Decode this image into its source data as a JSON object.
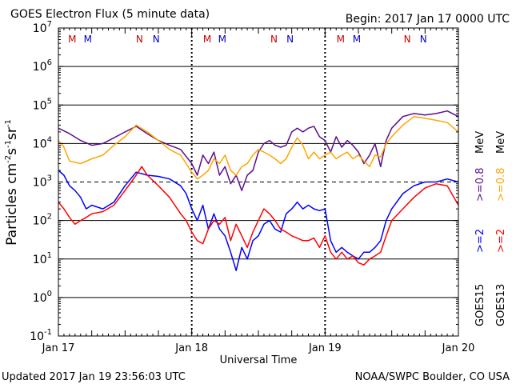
{
  "header": {
    "title": "GOES Electron Flux (5 minute data)",
    "begin": "Begin: 2017 Jan 17 0000 UTC"
  },
  "footer": {
    "updated": "Updated 2017 Jan 19 23:56:03 UTC",
    "credit": "NOAA/SWPC Boulder, CO USA"
  },
  "axes": {
    "xlabel": "Universal Time",
    "ylabel_main": "Particles cm",
    "ylabel_sup1": "-2",
    "ylabel_mid1": "s",
    "ylabel_sup2": "-1",
    "ylabel_mid2": "sr",
    "ylabel_sup3": "-1"
  },
  "legend": {
    "goes15": "GOES15",
    "goes13": "GOES13",
    "ge2": ">=2",
    "ge08": ">=0.8",
    "mev": "MeV",
    "colors": {
      "goes15_ge2": "#0000ff",
      "goes15_ge08": "#5c0f8b",
      "goes13_ge2": "#ff0000",
      "goes13_ge08": "#ffa500",
      "marker_m": "#cc0000",
      "marker_n": "#0000cc"
    }
  },
  "chart_data": {
    "type": "line",
    "title": "GOES Electron Flux (5 minute data)",
    "xlabel": "Universal Time",
    "ylabel": "Particles cm-2s-1sr-1",
    "x_ticks": [
      "Jan 17",
      "Jan 18",
      "Jan 19",
      "Jan 20"
    ],
    "x_unit": "hours since 2017 Jan 17 0000 UTC",
    "xlim": [
      0,
      72
    ],
    "y_scale": "log",
    "ylim": [
      0.1,
      10000000
    ],
    "y_ticks": [
      {
        "base": "10",
        "exp": "7"
      },
      {
        "base": "10",
        "exp": "6"
      },
      {
        "base": "10",
        "exp": "5"
      },
      {
        "base": "10",
        "exp": "4"
      },
      {
        "base": "10",
        "exp": "3"
      },
      {
        "base": "10",
        "exp": "2"
      },
      {
        "base": "10",
        "exp": "1"
      },
      {
        "base": "10",
        "exp": "0"
      },
      {
        "base": "10",
        "exp": "-1"
      }
    ],
    "alert_threshold": 1000,
    "magnetopause_markers": [
      {
        "label": "M",
        "x": 2.5,
        "color": "#cc0000"
      },
      {
        "label": "M",
        "x": 5.3,
        "color": "#0000cc"
      },
      {
        "label": "N",
        "x": 14.6,
        "color": "#cc0000"
      },
      {
        "label": "N",
        "x": 17.6,
        "color": "#0000cc"
      },
      {
        "label": "M",
        "x": 26.8,
        "color": "#cc0000"
      },
      {
        "label": "M",
        "x": 29.5,
        "color": "#0000cc"
      },
      {
        "label": "N",
        "x": 38.8,
        "color": "#cc0000"
      },
      {
        "label": "N",
        "x": 41.7,
        "color": "#0000cc"
      },
      {
        "label": "M",
        "x": 50.8,
        "color": "#cc0000"
      },
      {
        "label": "M",
        "x": 53.7,
        "color": "#0000cc"
      },
      {
        "label": "N",
        "x": 62.8,
        "color": "#cc0000"
      },
      {
        "label": "N",
        "x": 65.7,
        "color": "#0000cc"
      }
    ],
    "series": [
      {
        "name": "GOES15 >=0.8 MeV",
        "color": "#5c0f8b",
        "points": [
          [
            0,
            25000
          ],
          [
            2,
            18000
          ],
          [
            4,
            12000
          ],
          [
            6,
            9000
          ],
          [
            8,
            10000
          ],
          [
            10,
            14000
          ],
          [
            12,
            20000
          ],
          [
            14,
            28000
          ],
          [
            16,
            18000
          ],
          [
            18,
            12000
          ],
          [
            20,
            9000
          ],
          [
            22,
            7000
          ],
          [
            24,
            3000
          ],
          [
            25,
            1500
          ],
          [
            26,
            5000
          ],
          [
            27,
            3000
          ],
          [
            28,
            6000
          ],
          [
            29,
            1500
          ],
          [
            30,
            2500
          ],
          [
            31,
            900
          ],
          [
            32,
            1500
          ],
          [
            33,
            600
          ],
          [
            34,
            1500
          ],
          [
            35,
            2000
          ],
          [
            36,
            6000
          ],
          [
            37,
            10000
          ],
          [
            38,
            12000
          ],
          [
            39,
            9000
          ],
          [
            40,
            8000
          ],
          [
            41,
            9000
          ],
          [
            42,
            20000
          ],
          [
            43,
            25000
          ],
          [
            44,
            20000
          ],
          [
            45,
            25000
          ],
          [
            46,
            28000
          ],
          [
            47,
            15000
          ],
          [
            48,
            12000
          ],
          [
            49,
            6000
          ],
          [
            50,
            15000
          ],
          [
            51,
            8000
          ],
          [
            52,
            12000
          ],
          [
            53,
            9000
          ],
          [
            54,
            6000
          ],
          [
            55,
            3000
          ],
          [
            56,
            5000
          ],
          [
            57,
            10000
          ],
          [
            58,
            2500
          ],
          [
            59,
            12000
          ],
          [
            60,
            25000
          ],
          [
            62,
            50000
          ],
          [
            64,
            60000
          ],
          [
            66,
            55000
          ],
          [
            68,
            60000
          ],
          [
            70,
            70000
          ],
          [
            72,
            50000
          ]
        ]
      },
      {
        "name": "GOES13 >=0.8 MeV",
        "color": "#ffa500",
        "points": [
          [
            0,
            12000
          ],
          [
            1,
            8000
          ],
          [
            2,
            3500
          ],
          [
            4,
            3000
          ],
          [
            6,
            4000
          ],
          [
            8,
            5000
          ],
          [
            10,
            9000
          ],
          [
            12,
            15000
          ],
          [
            14,
            30000
          ],
          [
            16,
            20000
          ],
          [
            18,
            12000
          ],
          [
            20,
            7000
          ],
          [
            22,
            5000
          ],
          [
            23,
            3000
          ],
          [
            24,
            1800
          ],
          [
            25,
            1200
          ],
          [
            26,
            1500
          ],
          [
            27,
            2000
          ],
          [
            28,
            4000
          ],
          [
            29,
            3000
          ],
          [
            30,
            5000
          ],
          [
            31,
            2000
          ],
          [
            32,
            1500
          ],
          [
            33,
            2500
          ],
          [
            34,
            3000
          ],
          [
            35,
            5000
          ],
          [
            36,
            7000
          ],
          [
            37,
            6000
          ],
          [
            38,
            5000
          ],
          [
            39,
            4000
          ],
          [
            40,
            3000
          ],
          [
            41,
            4000
          ],
          [
            42,
            8000
          ],
          [
            43,
            14000
          ],
          [
            44,
            9000
          ],
          [
            45,
            4000
          ],
          [
            46,
            6000
          ],
          [
            47,
            4000
          ],
          [
            48,
            5000
          ],
          [
            49,
            6000
          ],
          [
            50,
            4000
          ],
          [
            51,
            5000
          ],
          [
            52,
            6000
          ],
          [
            53,
            4000
          ],
          [
            54,
            5000
          ],
          [
            55,
            3500
          ],
          [
            56,
            2500
          ],
          [
            57,
            5000
          ],
          [
            58,
            4500
          ],
          [
            59,
            10000
          ],
          [
            60,
            15000
          ],
          [
            62,
            30000
          ],
          [
            64,
            50000
          ],
          [
            66,
            45000
          ],
          [
            68,
            40000
          ],
          [
            70,
            35000
          ],
          [
            72,
            20000
          ]
        ]
      },
      {
        "name": "GOES15 >=2 MeV",
        "color": "#0000ff",
        "points": [
          [
            0,
            2000
          ],
          [
            1,
            1500
          ],
          [
            2,
            800
          ],
          [
            3,
            600
          ],
          [
            4,
            400
          ],
          [
            5,
            200
          ],
          [
            6,
            250
          ],
          [
            8,
            200
          ],
          [
            10,
            300
          ],
          [
            12,
            800
          ],
          [
            14,
            1800
          ],
          [
            16,
            1500
          ],
          [
            18,
            1400
          ],
          [
            20,
            1200
          ],
          [
            22,
            800
          ],
          [
            23,
            500
          ],
          [
            24,
            200
          ],
          [
            25,
            100
          ],
          [
            26,
            250
          ],
          [
            27,
            60
          ],
          [
            28,
            150
          ],
          [
            29,
            60
          ],
          [
            30,
            40
          ],
          [
            31,
            15
          ],
          [
            32,
            5
          ],
          [
            33,
            20
          ],
          [
            34,
            10
          ],
          [
            35,
            30
          ],
          [
            36,
            40
          ],
          [
            37,
            80
          ],
          [
            38,
            100
          ],
          [
            39,
            60
          ],
          [
            40,
            50
          ],
          [
            41,
            150
          ],
          [
            42,
            200
          ],
          [
            43,
            300
          ],
          [
            44,
            200
          ],
          [
            45,
            250
          ],
          [
            46,
            200
          ],
          [
            47,
            180
          ],
          [
            48,
            200
          ],
          [
            49,
            30
          ],
          [
            50,
            15
          ],
          [
            51,
            20
          ],
          [
            52,
            15
          ],
          [
            53,
            12
          ],
          [
            54,
            10
          ],
          [
            55,
            15
          ],
          [
            56,
            15
          ],
          [
            57,
            20
          ],
          [
            58,
            30
          ],
          [
            59,
            100
          ],
          [
            60,
            200
          ],
          [
            62,
            500
          ],
          [
            64,
            800
          ],
          [
            66,
            1000
          ],
          [
            68,
            1000
          ],
          [
            70,
            1200
          ],
          [
            72,
            1000
          ]
        ]
      },
      {
        "name": "GOES13 >=2 MeV",
        "color": "#ff0000",
        "points": [
          [
            0,
            300
          ],
          [
            1,
            200
          ],
          [
            2,
            120
          ],
          [
            3,
            80
          ],
          [
            4,
            100
          ],
          [
            5,
            120
          ],
          [
            6,
            150
          ],
          [
            8,
            170
          ],
          [
            10,
            250
          ],
          [
            12,
            600
          ],
          [
            14,
            1500
          ],
          [
            15,
            2500
          ],
          [
            16,
            1500
          ],
          [
            18,
            800
          ],
          [
            20,
            400
          ],
          [
            22,
            150
          ],
          [
            23,
            100
          ],
          [
            24,
            50
          ],
          [
            25,
            30
          ],
          [
            26,
            25
          ],
          [
            27,
            60
          ],
          [
            28,
            100
          ],
          [
            29,
            80
          ],
          [
            30,
            120
          ],
          [
            31,
            30
          ],
          [
            32,
            80
          ],
          [
            33,
            40
          ],
          [
            34,
            20
          ],
          [
            35,
            50
          ],
          [
            36,
            100
          ],
          [
            37,
            200
          ],
          [
            38,
            150
          ],
          [
            39,
            100
          ],
          [
            40,
            60
          ],
          [
            41,
            50
          ],
          [
            42,
            40
          ],
          [
            43,
            35
          ],
          [
            44,
            30
          ],
          [
            45,
            30
          ],
          [
            46,
            35
          ],
          [
            47,
            20
          ],
          [
            48,
            40
          ],
          [
            49,
            15
          ],
          [
            50,
            10
          ],
          [
            51,
            15
          ],
          [
            52,
            10
          ],
          [
            53,
            12
          ],
          [
            54,
            8
          ],
          [
            55,
            7
          ],
          [
            56,
            10
          ],
          [
            57,
            12
          ],
          [
            58,
            15
          ],
          [
            59,
            40
          ],
          [
            60,
            100
          ],
          [
            62,
            200
          ],
          [
            64,
            400
          ],
          [
            66,
            700
          ],
          [
            68,
            900
          ],
          [
            70,
            800
          ],
          [
            72,
            250
          ]
        ]
      }
    ]
  }
}
